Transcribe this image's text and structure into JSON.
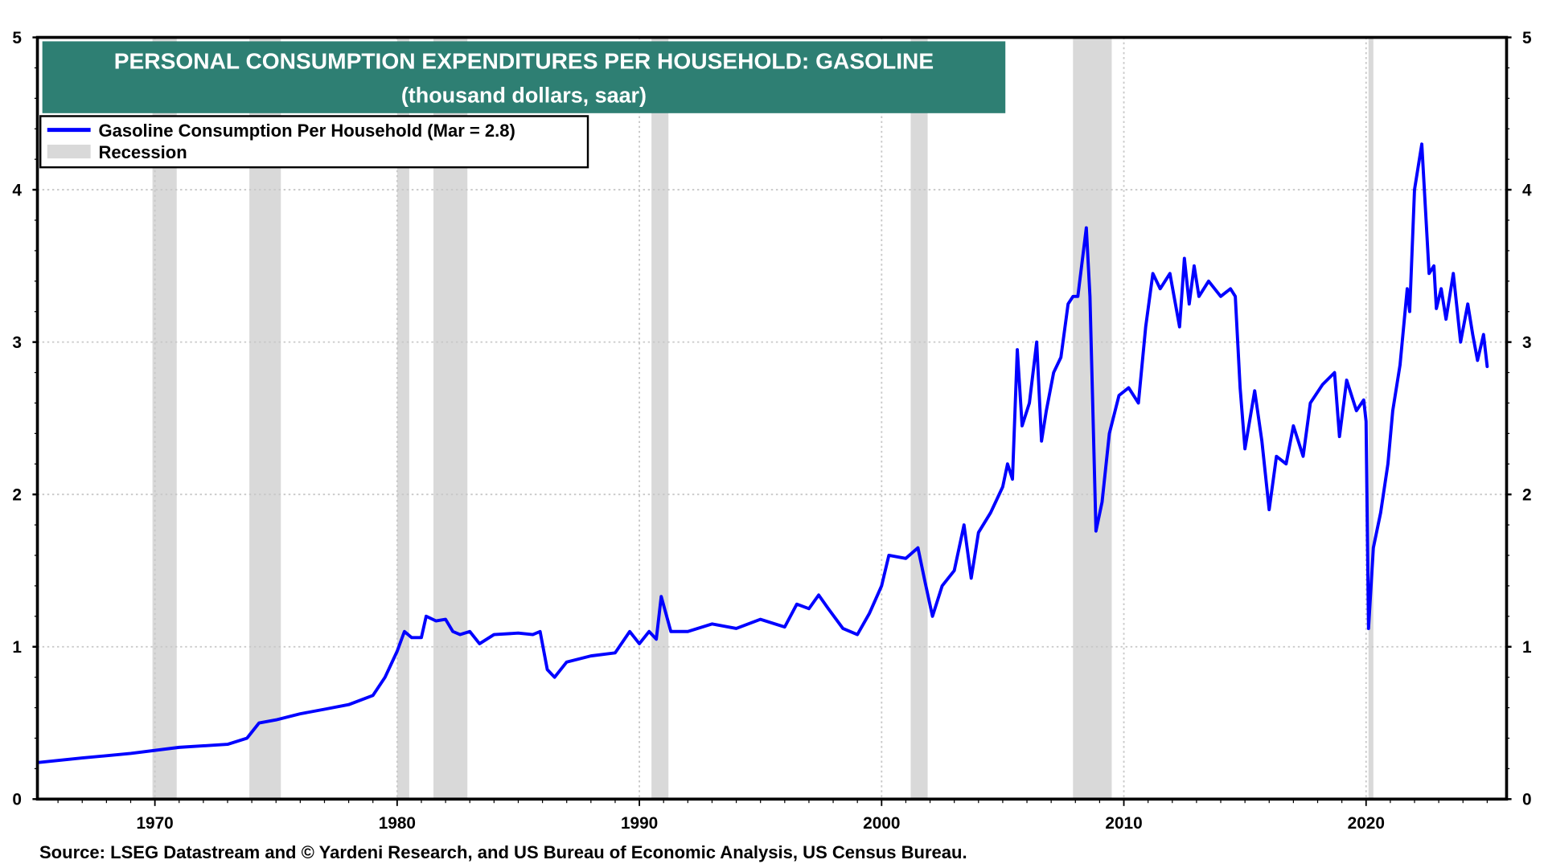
{
  "chart_data": {
    "type": "line",
    "title": "PERSONAL CONSUMPTION EXPENDITURES PER HOUSEHOLD: GASOLINE",
    "subtitle": "(thousand dollars, saar)",
    "xlabel": "",
    "ylabel": "",
    "xlim": [
      1965.15,
      2025.8
    ],
    "ylim": [
      0,
      5
    ],
    "x_ticks": [
      1970,
      1980,
      1990,
      2000,
      2010,
      2020
    ],
    "x_tick_labels": [
      "1970",
      "1980",
      "1990",
      "2000",
      "2010",
      "2020"
    ],
    "y_ticks": [
      0,
      1,
      2,
      3,
      4,
      5
    ],
    "y_tick_labels": [
      "0",
      "1",
      "2",
      "3",
      "4",
      "5"
    ],
    "grid": true,
    "legend_position": "top-left",
    "legend": [
      "Gasoline Consumption Per Household (Mar = 2.8)",
      "Recession"
    ],
    "source": "Source: LSEG Datastream and © Yardeni Research, and US Bureau of Economic Analysis, US Census Bureau.",
    "colors": {
      "series": "#0000ff",
      "recession": "#d9d9d9",
      "title_bg": "#2e7f73"
    },
    "recessions": [
      [
        1969.9,
        1970.9
      ],
      [
        1973.9,
        1975.2
      ],
      [
        1980.0,
        1980.5
      ],
      [
        1981.5,
        1982.9
      ],
      [
        1990.5,
        1991.2
      ],
      [
        2001.2,
        2001.9
      ],
      [
        2007.9,
        2009.5
      ],
      [
        2020.1,
        2020.3
      ]
    ],
    "series": [
      {
        "name": "Gasoline Consumption Per Household",
        "x": [
          1965.2,
          1967,
          1969,
          1971,
          1973,
          1973.8,
          1974.3,
          1975,
          1976,
          1977,
          1978,
          1979,
          1979.5,
          1980,
          1980.3,
          1980.6,
          1981,
          1981.2,
          1981.6,
          1982,
          1982.3,
          1982.6,
          1983,
          1983.4,
          1984,
          1985,
          1985.6,
          1985.9,
          1986.2,
          1986.5,
          1987,
          1988,
          1989,
          1989.6,
          1990,
          1990.4,
          1990.7,
          1990.9,
          1991.3,
          1992,
          1993,
          1994,
          1995,
          1996,
          1996.5,
          1997,
          1997.4,
          1997.8,
          1998.4,
          1999,
          1999.5,
          2000,
          2000.3,
          2001,
          2001.5,
          2001.8,
          2002.1,
          2002.5,
          2003,
          2003.4,
          2003.7,
          2004,
          2004.5,
          2005,
          2005.2,
          2005.4,
          2005.6,
          2005.8,
          2006.1,
          2006.4,
          2006.6,
          2006.8,
          2007.1,
          2007.4,
          2007.7,
          2007.9,
          2008.1,
          2008.45,
          2008.6,
          2008.85,
          2009.1,
          2009.4,
          2009.8,
          2010.2,
          2010.6,
          2010.9,
          2011.2,
          2011.5,
          2011.9,
          2012.3,
          2012.5,
          2012.7,
          2012.9,
          2013.1,
          2013.5,
          2014.0,
          2014.4,
          2014.6,
          2014.8,
          2015.0,
          2015.4,
          2015.7,
          2016.0,
          2016.3,
          2016.7,
          2017.0,
          2017.4,
          2017.7,
          2018.2,
          2018.7,
          2018.9,
          2019.2,
          2019.6,
          2019.9,
          2020.0,
          2020.1,
          2020.3,
          2020.6,
          2020.9,
          2021.1,
          2021.4,
          2021.7,
          2021.8,
          2022.0,
          2022.3,
          2022.6,
          2022.8,
          2022.9,
          2023.1,
          2023.3,
          2023.6,
          2023.9,
          2024.2,
          2024.4,
          2024.6,
          2024.85,
          2025.0
        ],
        "y": [
          0.24,
          0.27,
          0.3,
          0.34,
          0.36,
          0.4,
          0.5,
          0.52,
          0.56,
          0.59,
          0.62,
          0.68,
          0.8,
          0.97,
          1.1,
          1.06,
          1.06,
          1.2,
          1.17,
          1.18,
          1.1,
          1.08,
          1.1,
          1.02,
          1.08,
          1.09,
          1.08,
          1.1,
          0.85,
          0.8,
          0.9,
          0.94,
          0.96,
          1.1,
          1.02,
          1.1,
          1.05,
          1.33,
          1.1,
          1.1,
          1.15,
          1.12,
          1.18,
          1.13,
          1.28,
          1.25,
          1.34,
          1.25,
          1.12,
          1.08,
          1.22,
          1.4,
          1.6,
          1.58,
          1.65,
          1.42,
          1.2,
          1.4,
          1.5,
          1.8,
          1.45,
          1.75,
          1.88,
          2.05,
          2.2,
          2.1,
          2.95,
          2.45,
          2.6,
          3.0,
          2.35,
          2.55,
          2.8,
          2.9,
          3.25,
          3.3,
          3.3,
          3.75,
          3.3,
          1.76,
          1.95,
          2.4,
          2.65,
          2.7,
          2.6,
          3.1,
          3.45,
          3.35,
          3.45,
          3.1,
          3.55,
          3.25,
          3.5,
          3.3,
          3.4,
          3.3,
          3.35,
          3.3,
          2.7,
          2.3,
          2.68,
          2.35,
          1.9,
          2.25,
          2.2,
          2.45,
          2.25,
          2.6,
          2.72,
          2.8,
          2.38,
          2.75,
          2.55,
          2.62,
          2.48,
          1.12,
          1.65,
          1.88,
          2.2,
          2.55,
          2.85,
          3.35,
          3.2,
          4.0,
          4.3,
          3.45,
          3.5,
          3.22,
          3.35,
          3.15,
          3.45,
          3.0,
          3.25,
          3.05,
          2.88,
          3.05,
          2.84
        ]
      }
    ]
  }
}
